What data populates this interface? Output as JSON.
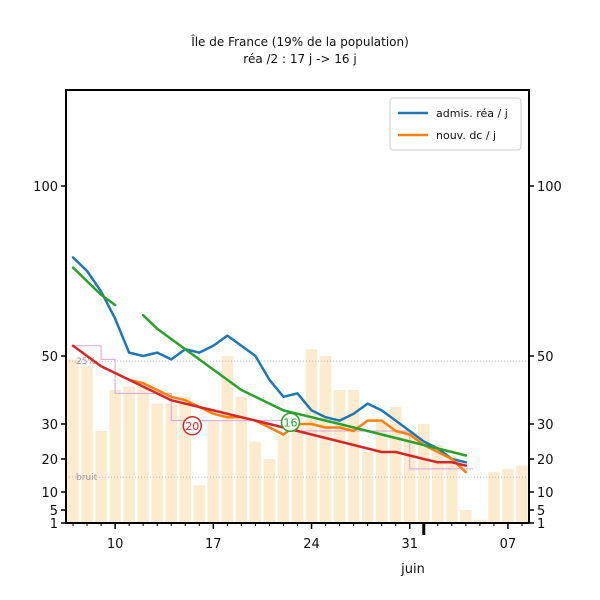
{
  "chart_data": {
    "type": "line",
    "title": "Île de France (19% de la population)",
    "subtitle": "réa /2 : 17 j -> 16 j",
    "xlabel": "",
    "ylabel": "",
    "x_range": [
      6.5,
      39.5
    ],
    "y_range": [
      0,
      130
    ],
    "y_ticks": [
      1,
      5,
      10,
      20,
      30,
      50,
      100
    ],
    "x_ticks": [
      {
        "day": 10,
        "label": "10"
      },
      {
        "day": 17,
        "label": "17"
      },
      {
        "day": 24,
        "label": "24"
      },
      {
        "day": 31,
        "label": "31"
      },
      {
        "day": 38,
        "label": "07"
      }
    ],
    "month_label": "juin",
    "legend_position": "top-right",
    "legend": [
      {
        "label": "admis. réa / j",
        "color": "#1f77b4"
      },
      {
        "label": "nouv. dc / j",
        "color": "#ff7f0e"
      }
    ],
    "reference_lines": [
      {
        "y": 48.5,
        "label": "25%"
      },
      {
        "y": 14.5,
        "label": "bruit"
      }
    ],
    "markers": [
      {
        "day": 22.5,
        "y": 30.5,
        "label": "16",
        "color": "#2ca02c"
      },
      {
        "day": 15.5,
        "y": 29.5,
        "label": "20",
        "color": "#d62728"
      }
    ],
    "bars": {
      "color": "#fdebd0",
      "x": [
        7,
        8,
        9,
        10,
        11,
        12,
        13,
        14,
        15,
        16,
        17,
        18,
        19,
        20,
        21,
        22,
        23,
        24,
        25,
        26,
        27,
        28,
        29,
        30,
        31,
        32,
        33,
        34,
        35,
        36,
        37,
        38,
        39
      ],
      "values": [
        49,
        47,
        28,
        40,
        41,
        41,
        36,
        36,
        38,
        12,
        31,
        50,
        38,
        25,
        20,
        27,
        30,
        52,
        50,
        40,
        40,
        22,
        31,
        35,
        28,
        30,
        24,
        21,
        5,
        2,
        16,
        17,
        18
      ]
    },
    "envelope": {
      "color": "#dda0dd",
      "steps": [
        {
          "from": 7.0,
          "to": 9.0,
          "y": 53
        },
        {
          "from": 9.0,
          "to": 10.0,
          "y": 49
        },
        {
          "from": 10.0,
          "to": 14.0,
          "y": 39
        },
        {
          "from": 14.0,
          "to": 23.0,
          "y": 31
        },
        {
          "from": 23.0,
          "to": 31.0,
          "y": 28
        },
        {
          "from": 31.0,
          "to": 35.5,
          "y": 17
        }
      ]
    },
    "series": [
      {
        "name": "admis. réa / j",
        "color": "#1f77b4",
        "x": [
          7,
          8,
          9,
          10,
          11,
          12,
          13,
          14,
          15,
          16,
          17,
          18,
          19,
          20,
          21,
          22,
          23,
          24,
          25,
          26,
          27,
          28,
          29,
          30,
          31,
          32,
          33,
          34,
          35
        ],
        "values": [
          79,
          75,
          69,
          61,
          51,
          50,
          51,
          49,
          52,
          51,
          53,
          56,
          53,
          50,
          43,
          38,
          39,
          34,
          32,
          31,
          33,
          36,
          34,
          31,
          28,
          25,
          23,
          20,
          19
        ]
      },
      {
        "name": "",
        "color": "#ff7f0e",
        "x": [
          11,
          12,
          13,
          14,
          15,
          16,
          17,
          18,
          19,
          20,
          21,
          22,
          23,
          24,
          25,
          26,
          27,
          28,
          29,
          30,
          31,
          32,
          33,
          34,
          35
        ],
        "values": [
          43,
          42,
          40,
          38,
          37,
          35,
          33,
          32,
          32,
          31,
          29,
          27,
          30,
          30,
          29,
          29,
          28,
          31,
          31,
          28,
          27,
          24,
          22,
          20,
          16
        ]
      },
      {
        "name": "",
        "color": "#2ca02c",
        "x": [
          7,
          8,
          9,
          10
        ],
        "values": [
          76,
          72,
          68,
          65
        ]
      },
      {
        "name": "",
        "color": "#2ca02c",
        "x": [
          12,
          13,
          14,
          15,
          16,
          17,
          18,
          19,
          20,
          21,
          22,
          23,
          24,
          25,
          26,
          27,
          28,
          29,
          30,
          31,
          32,
          33,
          34,
          35
        ],
        "values": [
          62,
          58,
          55,
          52,
          49,
          46,
          43,
          40,
          38,
          36,
          34,
          33,
          32,
          31,
          30,
          29,
          28,
          27,
          26,
          25,
          24,
          23,
          22,
          21
        ]
      },
      {
        "name": "",
        "color": "#d62728",
        "x": [
          7,
          8,
          9,
          10,
          11,
          12,
          13,
          14,
          15,
          16,
          17,
          18,
          19,
          20,
          21,
          22,
          23,
          24,
          25,
          26,
          27,
          28,
          29,
          30,
          31,
          32,
          33,
          34,
          35
        ],
        "values": [
          53,
          50,
          47,
          45,
          43,
          41,
          39,
          37,
          36,
          35,
          34,
          33,
          32,
          31,
          30,
          29,
          28,
          27,
          26,
          25,
          24,
          23,
          22,
          22,
          21,
          20,
          19,
          19,
          18
        ]
      }
    ]
  }
}
